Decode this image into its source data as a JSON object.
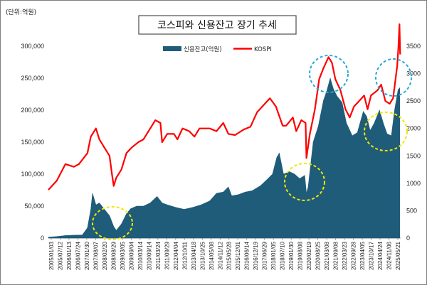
{
  "chart_data": {
    "type": "area",
    "title": "코스피와 신용잔고 장기 추세",
    "unit_label": "(단위:억원)",
    "legend_position": "top",
    "grid": false,
    "x_ticks": [
      "2005/01/03",
      "2005/07/12",
      "2006/01/13",
      "2006/07/24",
      "2007/01/30",
      "2007/08/07",
      "2008/02/20",
      "2008/08/29",
      "2009/03/05",
      "2009/09/04",
      "2010/03/14",
      "2010/09/14",
      "2011/03/24",
      "2011/09/29",
      "2012/04/04",
      "2012/10/11",
      "2013/04/18",
      "2013/10/25",
      "2014/05/08",
      "2014/11/12",
      "2015/05/28",
      "2015/12/01",
      "2016/06/14",
      "2016/12/19",
      "2017/06/29",
      "2018/01/05",
      "2018/07/10",
      "2019/01/30",
      "2019/08/08",
      "2020/02/19",
      "2020/08/25",
      "2021/03/08",
      "2021/09/08",
      "2022/03/23",
      "2022/09/28",
      "2023/04/05",
      "2023/10/17",
      "2024/04/24",
      "2024/11/06",
      "2025/05/21"
    ],
    "y_left": {
      "ticks": [
        "0",
        "50,000",
        "100,000",
        "150,000",
        "200,000",
        "250,000",
        "300,000"
      ],
      "range": [
        0,
        300000
      ]
    },
    "y_right": {
      "ticks": [
        "0",
        "500",
        "1000",
        "1500",
        "2000",
        "2500",
        "3000",
        "3500"
      ],
      "range": [
        0,
        3500
      ]
    },
    "x_range": [
      2005.0,
      2025.75
    ],
    "series": [
      {
        "name": "신용잔고(억원)",
        "axis": "left",
        "style": "area",
        "color": "#1f5c7a",
        "points": [
          [
            2005.0,
            1500
          ],
          [
            2005.5,
            2500
          ],
          [
            2006.0,
            4000
          ],
          [
            2006.5,
            4500
          ],
          [
            2007.0,
            5000
          ],
          [
            2007.3,
            16000
          ],
          [
            2007.5,
            45000
          ],
          [
            2007.6,
            70000
          ],
          [
            2007.8,
            52000
          ],
          [
            2008.0,
            55000
          ],
          [
            2008.3,
            45000
          ],
          [
            2008.6,
            35000
          ],
          [
            2008.85,
            18000
          ],
          [
            2009.0,
            12000
          ],
          [
            2009.3,
            22000
          ],
          [
            2009.6,
            38000
          ],
          [
            2009.85,
            46000
          ],
          [
            2010.2,
            50000
          ],
          [
            2010.6,
            50000
          ],
          [
            2011.0,
            55000
          ],
          [
            2011.4,
            65000
          ],
          [
            2011.7,
            55000
          ],
          [
            2012.0,
            52000
          ],
          [
            2012.5,
            48000
          ],
          [
            2013.0,
            45000
          ],
          [
            2013.5,
            48000
          ],
          [
            2014.0,
            52000
          ],
          [
            2014.5,
            58000
          ],
          [
            2014.9,
            70000
          ],
          [
            2015.3,
            72000
          ],
          [
            2015.6,
            80000
          ],
          [
            2015.8,
            66000
          ],
          [
            2016.2,
            68000
          ],
          [
            2016.6,
            72000
          ],
          [
            2017.0,
            74000
          ],
          [
            2017.5,
            82000
          ],
          [
            2017.9,
            92000
          ],
          [
            2018.2,
            100000
          ],
          [
            2018.45,
            126000
          ],
          [
            2018.6,
            133000
          ],
          [
            2018.85,
            100000
          ],
          [
            2019.2,
            104000
          ],
          [
            2019.5,
            100000
          ],
          [
            2019.8,
            93000
          ],
          [
            2020.1,
            98000
          ],
          [
            2020.2,
            70000
          ],
          [
            2020.3,
            80000
          ],
          [
            2020.6,
            150000
          ],
          [
            2020.9,
            175000
          ],
          [
            2021.2,
            215000
          ],
          [
            2021.4,
            230000
          ],
          [
            2021.6,
            250000
          ],
          [
            2021.8,
            232000
          ],
          [
            2022.0,
            222000
          ],
          [
            2022.3,
            212000
          ],
          [
            2022.55,
            180000
          ],
          [
            2022.9,
            160000
          ],
          [
            2023.2,
            165000
          ],
          [
            2023.55,
            198000
          ],
          [
            2023.75,
            190000
          ],
          [
            2023.95,
            168000
          ],
          [
            2024.2,
            180000
          ],
          [
            2024.5,
            200000
          ],
          [
            2024.75,
            178000
          ],
          [
            2024.95,
            163000
          ],
          [
            2025.2,
            160000
          ],
          [
            2025.4,
            202000
          ],
          [
            2025.6,
            232000
          ],
          [
            2025.7,
            235000
          ]
        ]
      },
      {
        "name": "KOSPI",
        "axis": "right",
        "style": "line",
        "color": "#ff0000",
        "points": [
          [
            2005.0,
            880
          ],
          [
            2005.5,
            1050
          ],
          [
            2006.0,
            1350
          ],
          [
            2006.5,
            1300
          ],
          [
            2006.8,
            1350
          ],
          [
            2007.0,
            1430
          ],
          [
            2007.3,
            1550
          ],
          [
            2007.5,
            1850
          ],
          [
            2007.8,
            2000
          ],
          [
            2008.0,
            1800
          ],
          [
            2008.3,
            1650
          ],
          [
            2008.6,
            1500
          ],
          [
            2008.75,
            1150
          ],
          [
            2008.85,
            950
          ],
          [
            2009.0,
            1100
          ],
          [
            2009.3,
            1250
          ],
          [
            2009.6,
            1550
          ],
          [
            2009.9,
            1650
          ],
          [
            2010.3,
            1750
          ],
          [
            2010.6,
            1800
          ],
          [
            2010.9,
            1950
          ],
          [
            2011.3,
            2150
          ],
          [
            2011.6,
            2100
          ],
          [
            2011.7,
            1750
          ],
          [
            2012.0,
            1900
          ],
          [
            2012.4,
            1900
          ],
          [
            2012.6,
            1800
          ],
          [
            2012.9,
            2000
          ],
          [
            2013.3,
            1950
          ],
          [
            2013.6,
            1850
          ],
          [
            2013.9,
            2000
          ],
          [
            2014.5,
            2000
          ],
          [
            2014.9,
            1950
          ],
          [
            2015.3,
            2100
          ],
          [
            2015.6,
            1900
          ],
          [
            2016.0,
            1880
          ],
          [
            2016.5,
            1980
          ],
          [
            2016.9,
            2030
          ],
          [
            2017.3,
            2300
          ],
          [
            2017.6,
            2400
          ],
          [
            2017.9,
            2500
          ],
          [
            2018.05,
            2550
          ],
          [
            2018.4,
            2400
          ],
          [
            2018.8,
            2050
          ],
          [
            2019.0,
            2050
          ],
          [
            2019.4,
            2200
          ],
          [
            2019.6,
            1950
          ],
          [
            2019.9,
            2150
          ],
          [
            2020.15,
            2100
          ],
          [
            2020.2,
            1460
          ],
          [
            2020.4,
            1900
          ],
          [
            2020.7,
            2350
          ],
          [
            2020.95,
            2900
          ],
          [
            2021.2,
            3100
          ],
          [
            2021.5,
            3300
          ],
          [
            2021.7,
            3200
          ],
          [
            2021.9,
            2900
          ],
          [
            2022.2,
            2700
          ],
          [
            2022.5,
            2350
          ],
          [
            2022.75,
            2200
          ],
          [
            2023.0,
            2400
          ],
          [
            2023.3,
            2500
          ],
          [
            2023.6,
            2600
          ],
          [
            2023.8,
            2350
          ],
          [
            2024.0,
            2600
          ],
          [
            2024.4,
            2700
          ],
          [
            2024.6,
            2800
          ],
          [
            2024.85,
            2500
          ],
          [
            2025.1,
            2450
          ],
          [
            2025.3,
            2550
          ],
          [
            2025.45,
            2900
          ],
          [
            2025.55,
            3150
          ],
          [
            2025.62,
            3500
          ],
          [
            2025.68,
            3900
          ],
          [
            2025.72,
            3350
          ]
        ]
      }
    ]
  }
}
